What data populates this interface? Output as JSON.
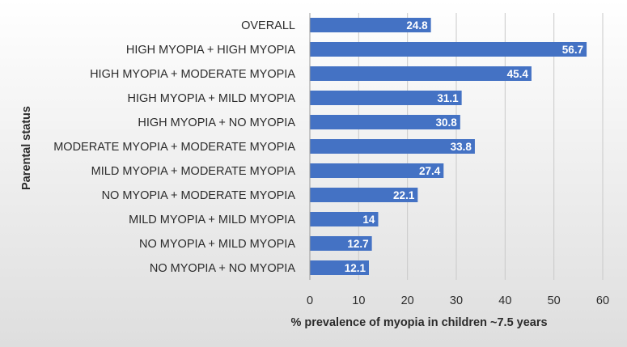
{
  "chart_data": {
    "type": "bar",
    "orientation": "horizontal",
    "title": "",
    "xlabel": "% prevalence of myopia in children ~7.5 years",
    "ylabel": "Parental status",
    "xlim": [
      0,
      60
    ],
    "xticks": [
      0,
      10,
      20,
      30,
      40,
      50,
      60
    ],
    "grid": true,
    "bar_color": "#4472c4",
    "categories": [
      "OVERALL",
      "HIGH MYOPIA + HIGH MYOPIA",
      "HIGH MYOPIA + MODERATE MYOPIA",
      "HIGH MYOPIA + MILD MYOPIA",
      "HIGH MYOPIA + NO MYOPIA",
      "MODERATE MYOPIA + MODERATE MYOPIA",
      "MILD MYOPIA + MODERATE MYOPIA",
      "NO MYOPIA + MODERATE MYOPIA",
      "MILD MYOPIA + MILD MYOPIA",
      "NO MYOPIA + MILD MYOPIA",
      "NO MYOPIA + NO MYOPIA"
    ],
    "values": [
      24.8,
      56.7,
      45.4,
      31.1,
      30.8,
      33.8,
      27.4,
      22.1,
      14,
      12.7,
      12.1
    ],
    "value_labels": [
      "24.8",
      "56.7",
      "45.4",
      "31.1",
      "30.8",
      "33.8",
      "27.4",
      "22.1",
      "14",
      "12.7",
      "12.1"
    ]
  }
}
